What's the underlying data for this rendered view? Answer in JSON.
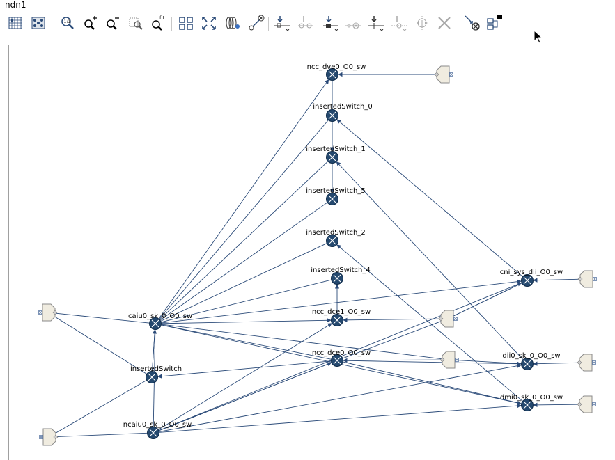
{
  "window": {
    "title": "ndn1"
  },
  "toolbar": {
    "buttons": [
      {
        "name": "grid-view-button",
        "icon": "grid-icon"
      },
      {
        "name": "layout-button",
        "icon": "layout-grid-icon"
      },
      {
        "name": "zoom-actual-button",
        "icon": "zoom-actual-size-icon",
        "label": "1:1"
      },
      {
        "name": "zoom-in-button",
        "icon": "zoom-in-icon"
      },
      {
        "name": "zoom-out-button",
        "icon": "zoom-out-icon"
      },
      {
        "name": "zoom-selection-button",
        "icon": "zoom-selection-icon"
      },
      {
        "name": "zoom-fit-button",
        "icon": "zoom-fit-icon",
        "label": "fit"
      },
      {
        "name": "arrange-button",
        "icon": "arrange-icon"
      },
      {
        "name": "expand-button",
        "icon": "expand-icon"
      },
      {
        "name": "spring-button",
        "icon": "spring-icon"
      },
      {
        "name": "connect-button",
        "icon": "connect-icon"
      },
      {
        "name": "insert-switch-button",
        "icon": "insert-switch-icon"
      },
      {
        "name": "remove-switch-button",
        "icon": "remove-switch-icon"
      },
      {
        "name": "insert-switch-before-button",
        "icon": "insert-switch-before-icon"
      },
      {
        "name": "remove-switch-before-button",
        "icon": "remove-switch-before-icon"
      },
      {
        "name": "insert-switch-after-button",
        "icon": "insert-switch-after-icon"
      },
      {
        "name": "remove-switch-after-button",
        "icon": "remove-switch-after-icon"
      },
      {
        "name": "split-button",
        "icon": "split-icon"
      },
      {
        "name": "delete-button",
        "icon": "delete-icon"
      },
      {
        "name": "disconnect-button",
        "icon": "disconnect-icon"
      },
      {
        "name": "properties-button",
        "icon": "properties-icon"
      }
    ]
  },
  "graph": {
    "switches": [
      {
        "id": "dve",
        "label": "ncc_dve0_O0_sw"
      },
      {
        "id": "is0",
        "label": "insertedSwitch_0"
      },
      {
        "id": "is1",
        "label": "insertedSwitch_1"
      },
      {
        "id": "is5",
        "label": "insertedSwitch_5"
      },
      {
        "id": "is2",
        "label": "insertedSwitch_2"
      },
      {
        "id": "is4",
        "label": "insertedSwitch_4"
      },
      {
        "id": "dce1",
        "label": "ncc_dce1_O0_sw"
      },
      {
        "id": "dce0",
        "label": "ncc_dce0_O0_sw"
      },
      {
        "id": "caiu",
        "label": "caiu0_sk_0_O0_sw"
      },
      {
        "id": "is",
        "label": "insertedSwitch"
      },
      {
        "id": "ncaiu",
        "label": "ncaiu0_sk_0_O0_sw"
      },
      {
        "id": "cni",
        "label": "cni_sys_dii_O0_sw"
      },
      {
        "id": "dii",
        "label": "dii0_sk_0_O0_sw"
      },
      {
        "id": "dmi",
        "label": "dmi0_sk_0_O0_sw"
      }
    ],
    "colors": {
      "node_fill": "#24486e",
      "edge": "#2a4a78",
      "endpoint_fill": "#f0ece0",
      "endpoint_stroke": "#8a8a8a"
    }
  }
}
